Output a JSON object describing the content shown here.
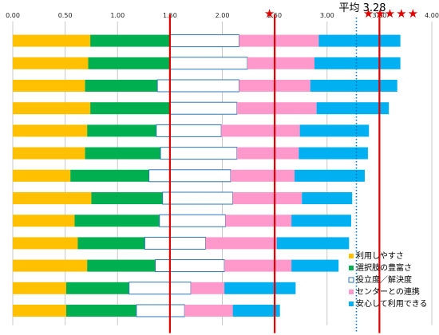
{
  "chart_data": {
    "type": "bar",
    "stacked": true,
    "orientation": "horizontal",
    "xlim": [
      0,
      4
    ],
    "x_ticks": [
      "0.00",
      "0.50",
      "1.00",
      "1.50",
      "2.00",
      "2.50",
      "3.00",
      "3.50",
      "4.00"
    ],
    "grid": "vertical",
    "legend_position": "bottom-right",
    "series": [
      {
        "name": "利用しやすさ",
        "color": "#ffc000",
        "values": [
          0.74,
          0.72,
          0.69,
          0.74,
          0.71,
          0.69,
          0.55,
          0.75,
          0.59,
          0.62,
          0.71,
          0.51,
          0.51
        ]
      },
      {
        "name": "選択肢の豊富さ",
        "color": "#00b050",
        "values": [
          0.76,
          0.78,
          0.69,
          0.76,
          0.66,
          0.72,
          0.75,
          0.68,
          0.81,
          0.64,
          0.65,
          0.6,
          0.67
        ]
      },
      {
        "name": "役立度／解決度",
        "color": "#ffffff",
        "values": [
          0.66,
          0.74,
          0.78,
          0.64,
          0.62,
          0.73,
          0.78,
          0.67,
          0.63,
          0.58,
          0.66,
          0.59,
          0.46
        ]
      },
      {
        "name": "センターとの連携",
        "color": "#ff99cc",
        "values": [
          0.76,
          0.64,
          0.68,
          0.76,
          0.75,
          0.59,
          0.61,
          0.66,
          0.63,
          0.68,
          0.64,
          0.32,
          0.46
        ]
      },
      {
        "name": "安心して利用できる",
        "color": "#00b0f0",
        "values": [
          0.78,
          0.82,
          0.83,
          0.69,
          0.66,
          0.66,
          0.67,
          0.48,
          0.57,
          0.69,
          0.45,
          0.68,
          0.45
        ]
      }
    ],
    "reference_lines": [
      {
        "x": 1.5,
        "style": "solid",
        "color": "#e00000",
        "stars": ""
      },
      {
        "x": 2.5,
        "style": "solid",
        "color": "#e00000",
        "stars": "★"
      },
      {
        "x": 3.5,
        "style": "solid",
        "color": "#e00000",
        "stars": "★★"
      },
      {
        "x": 3.28,
        "style": "dotted",
        "color": "#0070c0",
        "label": "平均 3.28"
      }
    ],
    "star_labels": [
      "★",
      "★★",
      "★★★"
    ]
  }
}
